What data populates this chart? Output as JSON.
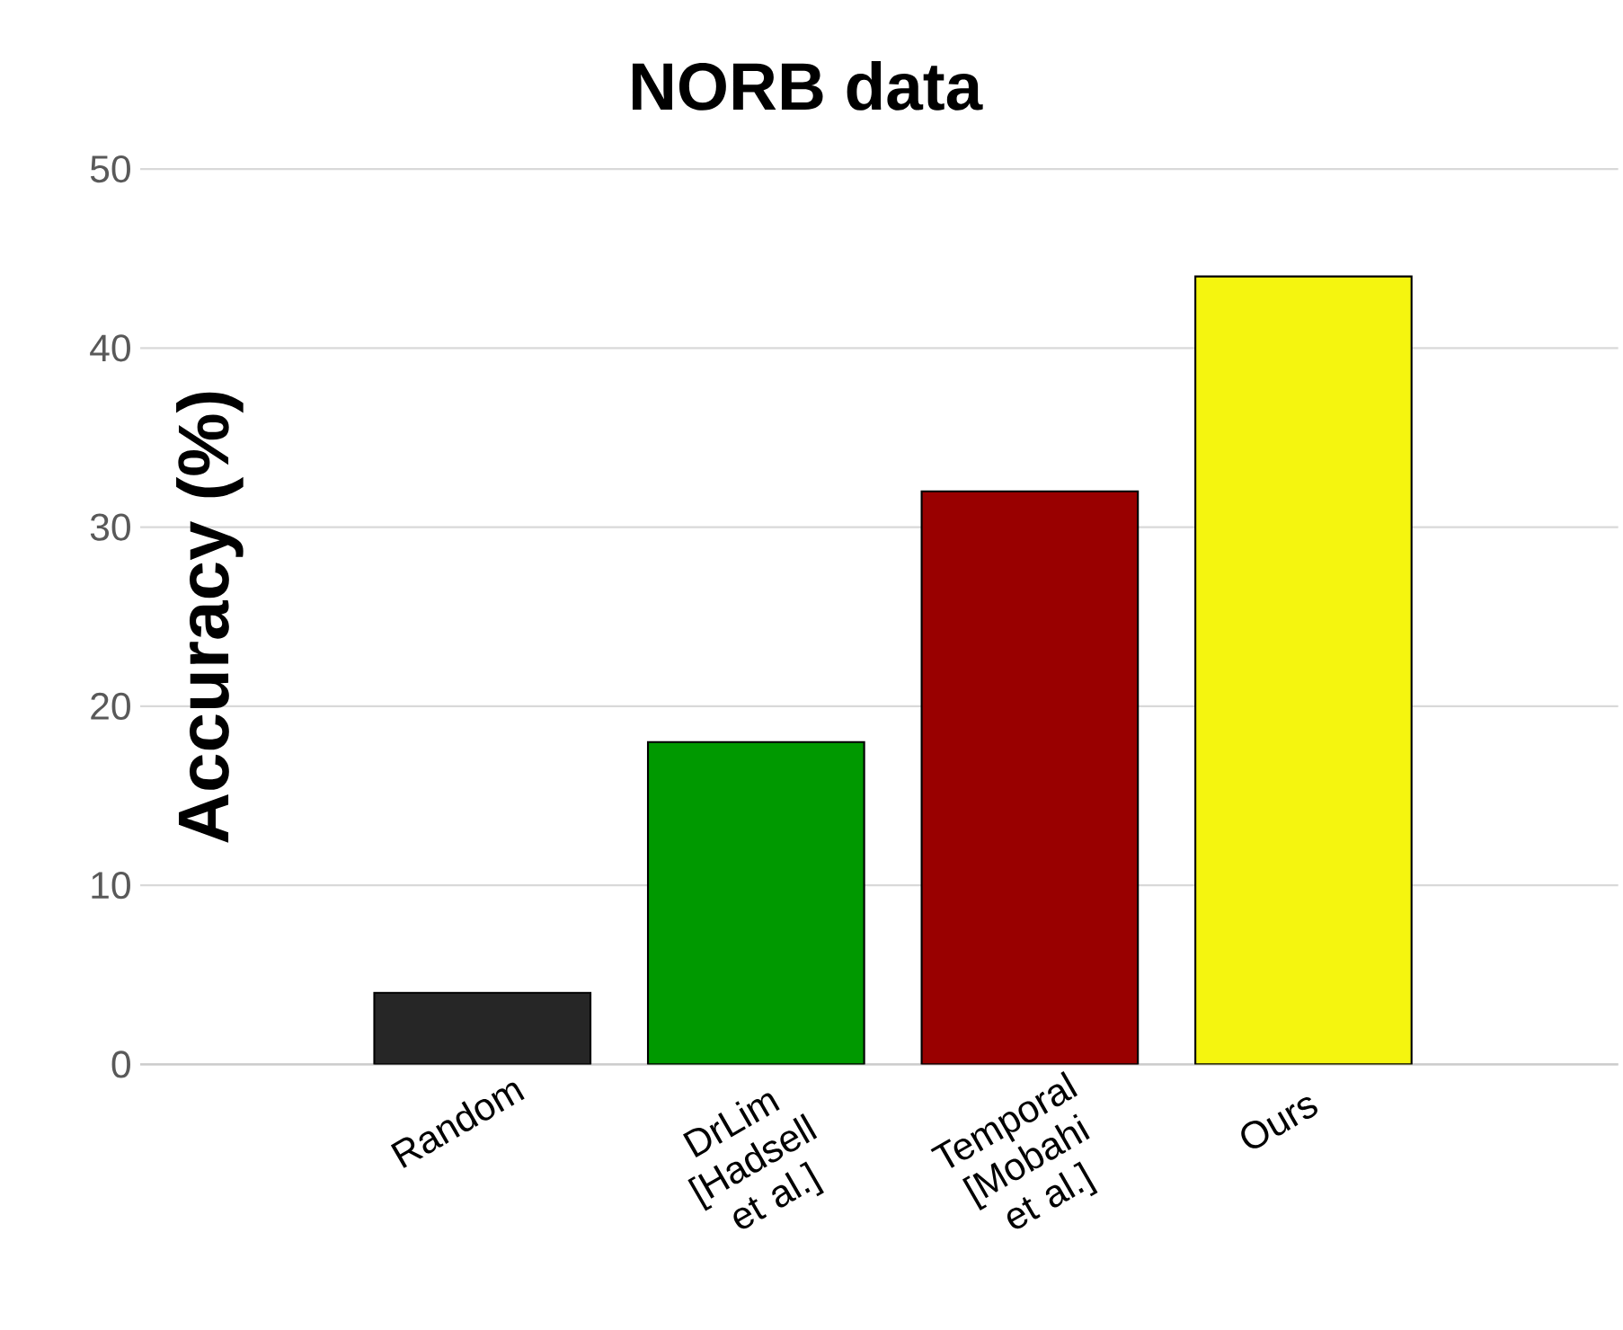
{
  "chart_data": {
    "type": "bar",
    "title": "NORB data",
    "ylabel": "Accuracy (%)",
    "categories": [
      "Random",
      "DrLim [Hadsell et al.]",
      "Temporal [Mobahi et al.]",
      "Ours"
    ],
    "values": [
      4,
      18,
      32,
      44
    ],
    "colors": [
      "#262626",
      "#009900",
      "#990000",
      "#f5f50f"
    ],
    "ylim": [
      0,
      50
    ],
    "yticks": [
      0,
      10,
      20,
      30,
      40,
      50
    ],
    "grid": "y"
  }
}
